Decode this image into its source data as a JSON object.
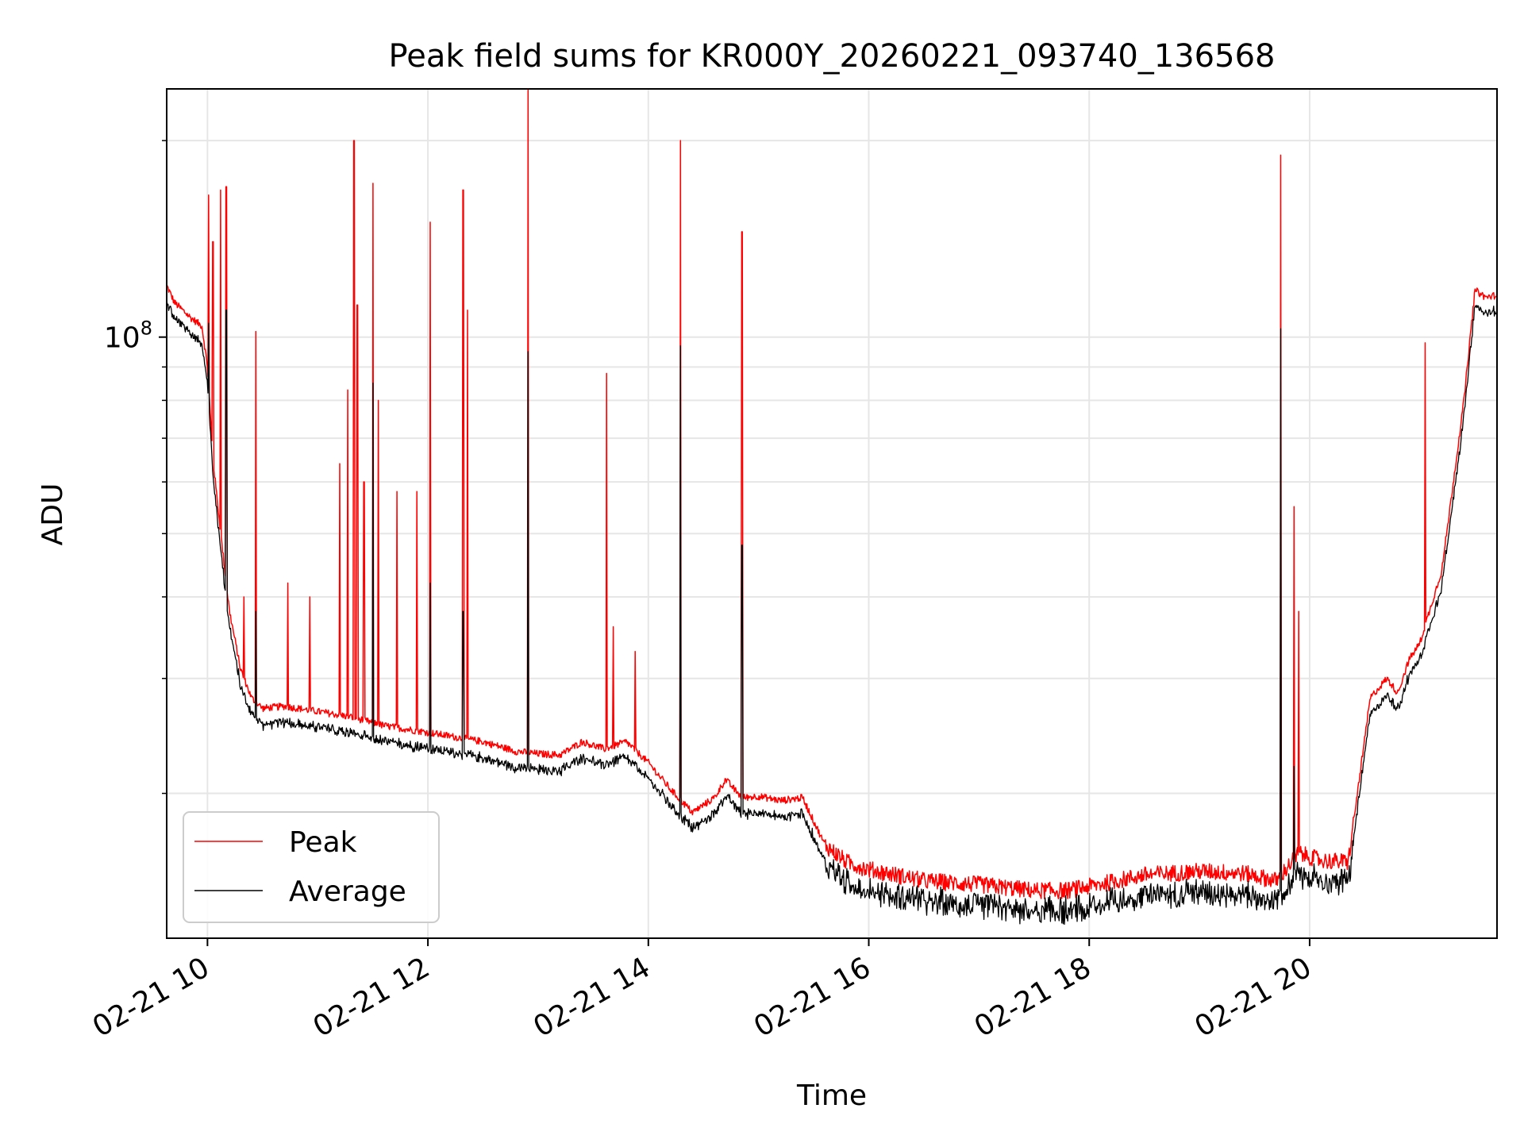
{
  "chart_data": {
    "type": "line",
    "title": "Peak field sums for KR000Y_20260221_093740_136568",
    "xlabel": "Time",
    "ylabel": "ADU",
    "y_scale": "log",
    "ylim": [
      12000000,
      240000000
    ],
    "xlim_hours": [
      9.63,
      21.7
    ],
    "x_ticks": [
      {
        "hour": 10,
        "label": "02-21 10"
      },
      {
        "hour": 12,
        "label": "02-21 12"
      },
      {
        "hour": 14,
        "label": "02-21 14"
      },
      {
        "hour": 16,
        "label": "02-21 16"
      },
      {
        "hour": 18,
        "label": "02-21 18"
      },
      {
        "hour": 20,
        "label": "02-21 20"
      }
    ],
    "y_major_ticks": [
      {
        "value": 100000000,
        "base": "10",
        "exp": "8"
      }
    ],
    "y_minor_ticks": [
      20000000,
      30000000,
      40000000,
      50000000,
      60000000,
      70000000,
      80000000,
      90000000,
      200000000
    ],
    "grid": true,
    "legend_position": "lower-left",
    "series": [
      {
        "name": "Peak",
        "color": "#ff0000",
        "baseline": [
          [
            9.63,
            120000000
          ],
          [
            9.7,
            113000000
          ],
          [
            9.85,
            107000000
          ],
          [
            9.95,
            104000000
          ],
          [
            10.0,
            90000000
          ],
          [
            10.05,
            65000000
          ],
          [
            10.12,
            50000000
          ],
          [
            10.2,
            38000000
          ],
          [
            10.3,
            31000000
          ],
          [
            10.4,
            28000000
          ],
          [
            10.5,
            27000000
          ],
          [
            10.7,
            27200000
          ],
          [
            11.0,
            26700000
          ],
          [
            11.3,
            26200000
          ],
          [
            11.6,
            25400000
          ],
          [
            12.0,
            24800000
          ],
          [
            12.5,
            24000000
          ],
          [
            12.8,
            23200000
          ],
          [
            13.0,
            23000000
          ],
          [
            13.2,
            22900000
          ],
          [
            13.4,
            24000000
          ],
          [
            13.6,
            23400000
          ],
          [
            13.8,
            24000000
          ],
          [
            14.0,
            22300000
          ],
          [
            14.2,
            20300000
          ],
          [
            14.4,
            18700000
          ],
          [
            14.6,
            19700000
          ],
          [
            14.7,
            21000000
          ],
          [
            14.85,
            19700000
          ],
          [
            15.0,
            19800000
          ],
          [
            15.2,
            19500000
          ],
          [
            15.4,
            19700000
          ],
          [
            15.6,
            16700000
          ],
          [
            15.8,
            15700000
          ],
          [
            16.0,
            15300000
          ],
          [
            16.5,
            14700000
          ],
          [
            17.0,
            14500000
          ],
          [
            17.5,
            14200000
          ],
          [
            17.8,
            14200000
          ],
          [
            18.0,
            14400000
          ],
          [
            18.5,
            15000000
          ],
          [
            19.0,
            15200000
          ],
          [
            19.4,
            15100000
          ],
          [
            19.7,
            14700000
          ],
          [
            19.9,
            16200000
          ],
          [
            20.1,
            15800000
          ],
          [
            20.35,
            15700000
          ],
          [
            20.45,
            21000000
          ],
          [
            20.55,
            28000000
          ],
          [
            20.7,
            30000000
          ],
          [
            20.8,
            28500000
          ],
          [
            20.9,
            32000000
          ],
          [
            21.0,
            34000000
          ],
          [
            21.2,
            44000000
          ],
          [
            21.4,
            80000000
          ],
          [
            21.5,
            118000000
          ],
          [
            21.6,
            115000000
          ],
          [
            21.7,
            116000000
          ]
        ],
        "spikes": [
          [
            10.01,
            165000000
          ],
          [
            10.05,
            140000000
          ],
          [
            10.12,
            168000000
          ],
          [
            10.17,
            170000000
          ],
          [
            10.33,
            40000000
          ],
          [
            10.44,
            102000000
          ],
          [
            10.73,
            42000000
          ],
          [
            10.93,
            40000000
          ],
          [
            11.2,
            64000000
          ],
          [
            11.27,
            83000000
          ],
          [
            11.33,
            200000000
          ],
          [
            11.36,
            112000000
          ],
          [
            11.42,
            60000000
          ],
          [
            11.5,
            172000000
          ],
          [
            11.55,
            80000000
          ],
          [
            11.72,
            58000000
          ],
          [
            11.9,
            58000000
          ],
          [
            12.02,
            150000000
          ],
          [
            12.32,
            168000000
          ],
          [
            12.36,
            110000000
          ],
          [
            12.91,
            250000000
          ],
          [
            13.62,
            88000000
          ],
          [
            13.68,
            36000000
          ],
          [
            13.88,
            33000000
          ],
          [
            14.29,
            200000000
          ],
          [
            14.85,
            145000000
          ],
          [
            19.74,
            190000000
          ],
          [
            19.86,
            55000000
          ],
          [
            19.9,
            38000000
          ],
          [
            21.05,
            98000000
          ]
        ]
      },
      {
        "name": "Average",
        "color": "#000000",
        "ratio_to_peak": 0.955,
        "spikes": [
          [
            10.01,
            105000000
          ],
          [
            10.17,
            110000000
          ],
          [
            10.44,
            38000000
          ],
          [
            11.5,
            85000000
          ],
          [
            12.02,
            42000000
          ],
          [
            12.32,
            38000000
          ],
          [
            12.91,
            95000000
          ],
          [
            14.29,
            97000000
          ],
          [
            14.85,
            48000000
          ],
          [
            19.74,
            103000000
          ],
          [
            19.86,
            22000000
          ]
        ]
      }
    ]
  }
}
